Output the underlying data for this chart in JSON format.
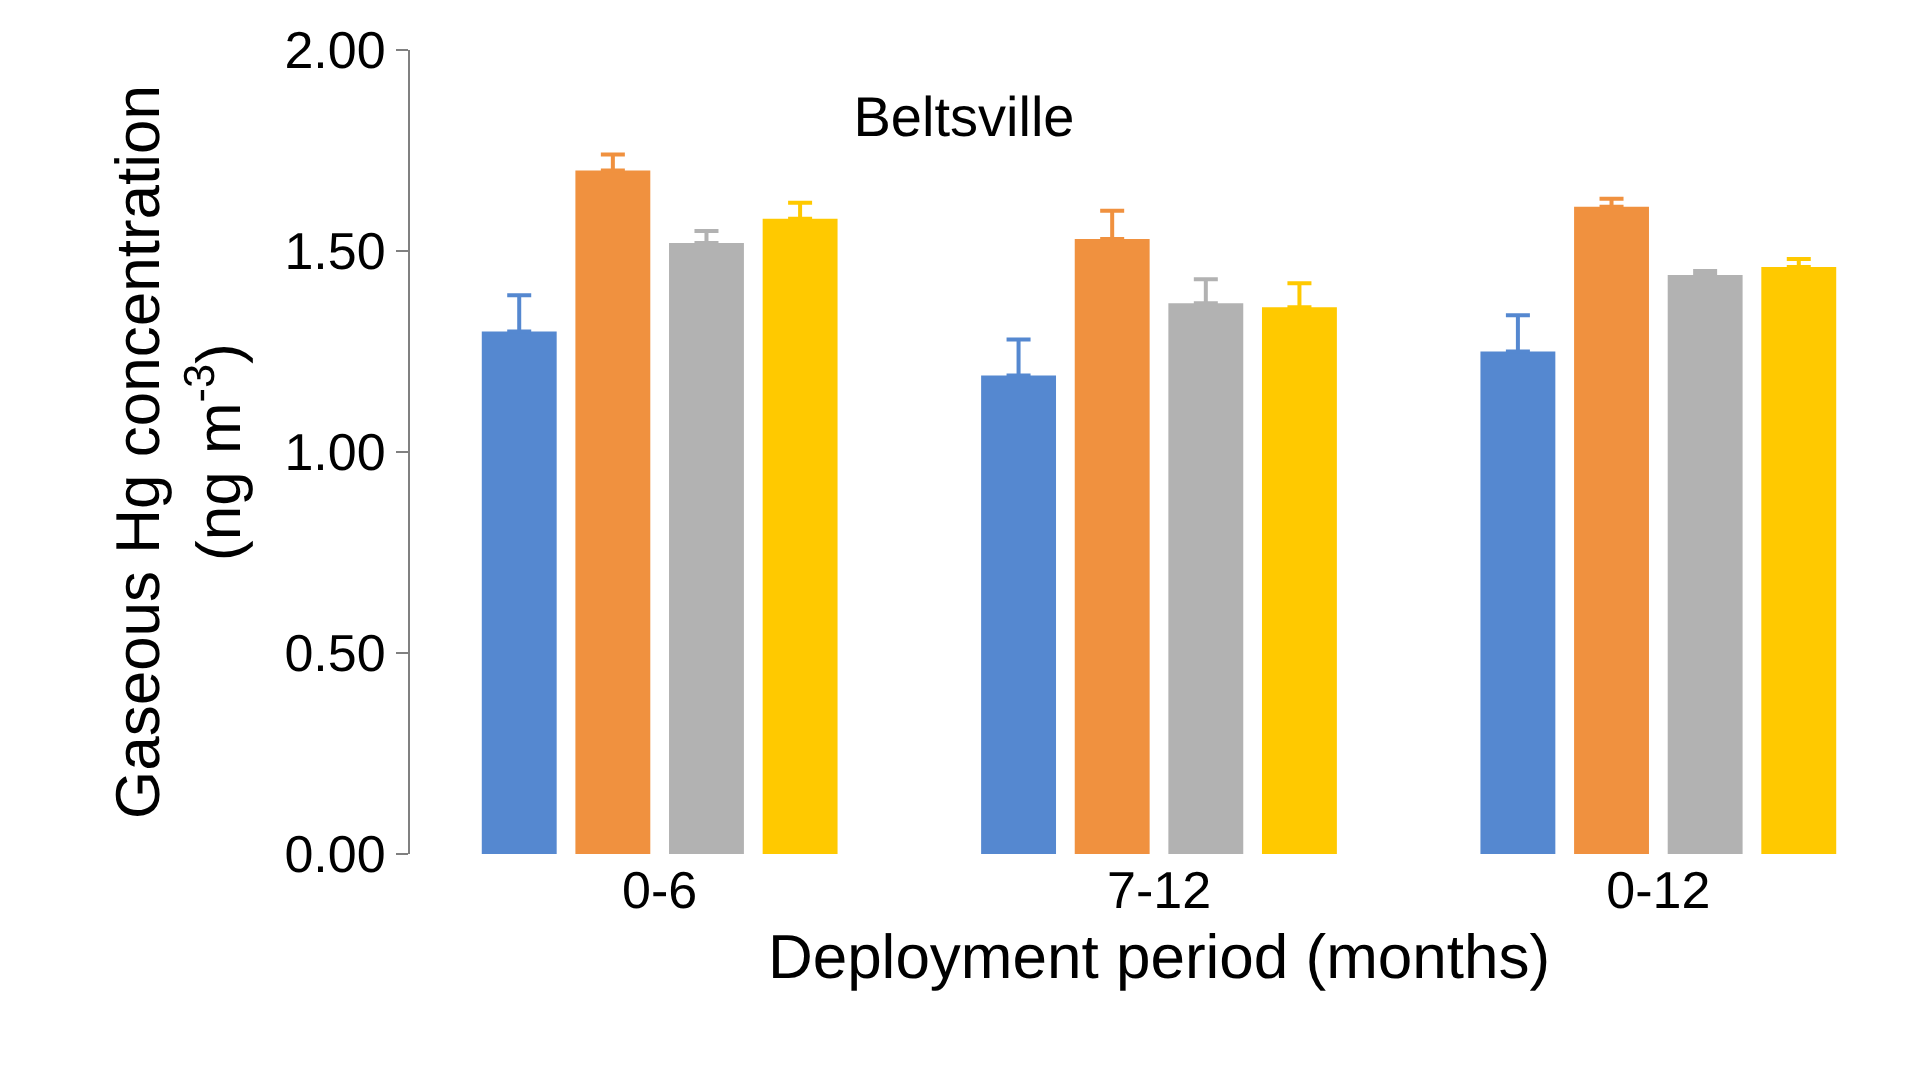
{
  "chart_data": {
    "type": "bar",
    "title": "Beltsville",
    "xlabel": "Deployment period (months)",
    "ylabel": "Gaseous Hg concentration\n(ng m$^{-3}$)",
    "categories": [
      "0-6",
      "7-12",
      "0-12"
    ],
    "series": [
      {
        "color": "#5588d0",
        "values": [
          1.3,
          1.19,
          1.25
        ],
        "errors": [
          [
            1.3,
            1.39
          ],
          [
            1.19,
            1.28
          ],
          [
            1.25,
            1.34
          ]
        ]
      },
      {
        "color": "#f0913f",
        "values": [
          1.7,
          1.53,
          1.61
        ],
        "errors": [
          [
            1.7,
            1.74
          ],
          [
            1.53,
            1.6
          ],
          [
            1.61,
            1.63
          ]
        ]
      },
      {
        "color": "#b2b2b2",
        "values": [
          1.52,
          1.37,
          1.44
        ],
        "errors": [
          [
            1.52,
            1.55
          ],
          [
            1.37,
            1.43
          ],
          [
            1.44,
            1.45
          ]
        ]
      },
      {
        "color": "#ffc900",
        "values": [
          1.58,
          1.36,
          1.46
        ],
        "errors": [
          [
            1.58,
            1.62
          ],
          [
            1.36,
            1.42
          ],
          [
            1.46,
            1.48
          ]
        ]
      }
    ],
    "ylim": [
      0,
      2.0
    ],
    "yticks": [
      {
        "value": 0,
        "label": "0.00"
      },
      {
        "value": 0.5,
        "label": "0.50"
      },
      {
        "value": 1.0,
        "label": "1.00"
      },
      {
        "value": 1.5,
        "label": "1.50"
      },
      {
        "value": 2.0,
        "label": "2.00"
      }
    ]
  }
}
